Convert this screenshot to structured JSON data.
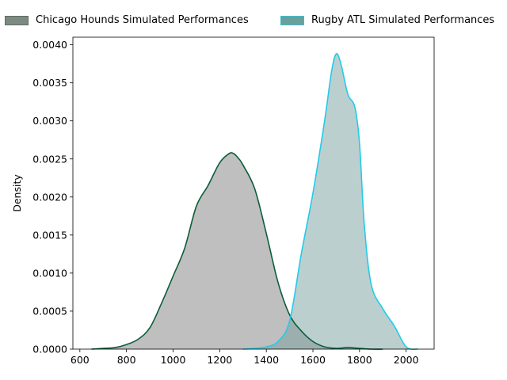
{
  "chart_data": {
    "type": "area",
    "title": "",
    "xlabel": "",
    "ylabel": "Density",
    "xlim": [
      570,
      2120
    ],
    "ylim": [
      0,
      0.0041
    ],
    "xticks": [
      600,
      800,
      1000,
      1200,
      1400,
      1600,
      1800,
      2000
    ],
    "yticks": [
      0,
      0.0005,
      0.001,
      0.0015,
      0.002,
      0.0025,
      0.003,
      0.0035,
      0.004
    ],
    "ytick_labels": [
      "0.0000",
      "0.0005",
      "0.0010",
      "0.0015",
      "0.0020",
      "0.0025",
      "0.0030",
      "0.0035",
      "0.0040"
    ],
    "grid": false,
    "legend_position": "top",
    "series": [
      {
        "name": "Chicago Hounds Simulated Performances",
        "line_color": "#0b5e3a",
        "fill_color": "#808080",
        "x": [
          650,
          700,
          750,
          800,
          850,
          900,
          950,
          1000,
          1050,
          1100,
          1150,
          1200,
          1240,
          1260,
          1280,
          1300,
          1350,
          1400,
          1450,
          1500,
          1550,
          1600,
          1650,
          1700,
          1750,
          1800,
          1850,
          1900
        ],
        "y": [
          0.0,
          1e-05,
          2e-05,
          6e-05,
          0.00013,
          0.00028,
          0.0006,
          0.00096,
          0.00133,
          0.00188,
          0.00215,
          0.00245,
          0.00257,
          0.00257,
          0.00251,
          0.00242,
          0.00211,
          0.00152,
          0.00088,
          0.00045,
          0.00024,
          0.0001,
          3e-05,
          1e-05,
          2e-05,
          1e-05,
          0.0,
          0.0
        ]
      },
      {
        "name": "Rugby ATL Simulated Performances",
        "line_color": "#22cbe8",
        "fill_color": "#7aa0a0",
        "x": [
          1300,
          1350,
          1400,
          1450,
          1500,
          1550,
          1600,
          1650,
          1680,
          1700,
          1720,
          1750,
          1780,
          1800,
          1820,
          1850,
          1900,
          1950,
          2000,
          2050
        ],
        "y": [
          0.0,
          1e-05,
          3e-05,
          0.0001,
          0.00037,
          0.00125,
          0.00205,
          0.003,
          0.00365,
          0.00388,
          0.00375,
          0.00335,
          0.00318,
          0.0027,
          0.00165,
          0.00085,
          0.00053,
          0.0003,
          3e-05,
          0.0
        ]
      }
    ]
  }
}
